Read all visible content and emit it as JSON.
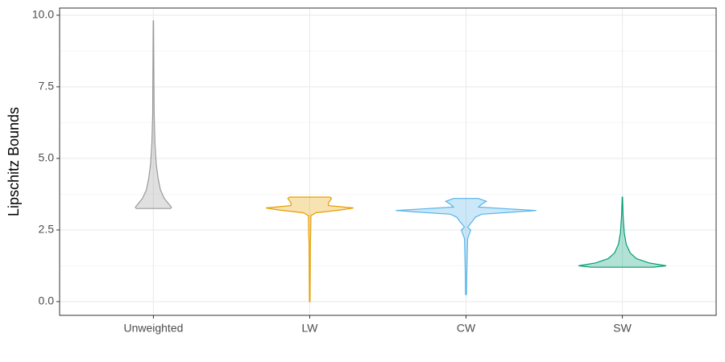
{
  "chart_data": {
    "type": "violin",
    "y_label": "Lipschitz Bounds",
    "categories": [
      "Unweighted",
      "LW",
      "CW",
      "SW"
    ],
    "violins": [
      {
        "color": "#999999",
        "y": [
          3.25,
          3.3,
          3.4,
          3.6,
          3.9,
          4.3,
          4.8,
          5.5,
          6.5,
          8,
          9.8
        ],
        "width": [
          0.11,
          0.115,
          0.1,
          0.07,
          0.045,
          0.03,
          0.018,
          0.01,
          0.005,
          0.003,
          0.001
        ]
      },
      {
        "color": "#e69f00",
        "y": [
          0,
          1,
          2,
          2.3,
          3.0,
          3.1,
          3.2,
          3.27,
          3.35,
          3.45,
          3.6,
          3.65
        ],
        "width": [
          0.002,
          0.003,
          0.004,
          0.006,
          0.008,
          0.04,
          0.2,
          0.28,
          0.12,
          0.12,
          0.14,
          0.13
        ]
      },
      {
        "color": "#56b4e9",
        "y": [
          0.25,
          1,
          1.5,
          2.2,
          2.5,
          2.6,
          2.8,
          2.95,
          3.05,
          3.18,
          3.3,
          3.4,
          3.5,
          3.6
        ],
        "width": [
          0.003,
          0.005,
          0.007,
          0.01,
          0.03,
          0.01,
          0.04,
          0.06,
          0.1,
          0.45,
          0.08,
          0.1,
          0.13,
          0.08
        ]
      },
      {
        "color": "#009e73",
        "y": [
          1.2,
          1.25,
          1.35,
          1.5,
          1.7,
          2.0,
          2.4,
          3.0,
          3.65
        ],
        "width": [
          0.2,
          0.28,
          0.17,
          0.09,
          0.05,
          0.025,
          0.012,
          0.005,
          0.001
        ]
      }
    ],
    "ylim": [
      -0.48,
      10.25
    ],
    "yticks": [
      {
        "value": 0,
        "label": "0.0"
      },
      {
        "value": 2.5,
        "label": "2.5"
      },
      {
        "value": 5,
        "label": "5.0"
      },
      {
        "value": 7.5,
        "label": "7.5"
      },
      {
        "value": 10,
        "label": "10.0"
      }
    ],
    "y_minor_ticks": [
      1.25,
      3.75,
      6.25,
      8.75
    ],
    "grid": true
  }
}
